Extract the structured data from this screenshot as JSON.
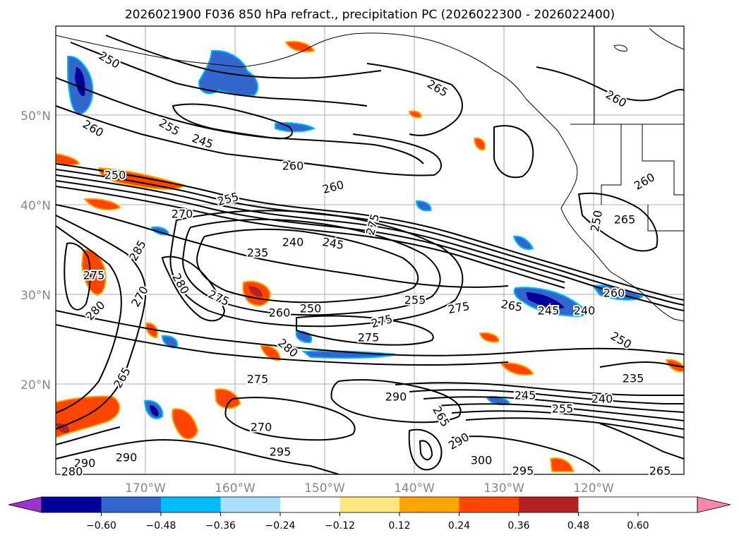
{
  "title": "2026021900 F036 850 hPa refract., precipitation PC (2026022300 - 2026022400)",
  "map": {
    "lat_labels": [
      "50°N",
      "40°N",
      "30°N",
      "20°N"
    ],
    "lon_labels": [
      "170°W",
      "160°W",
      "150°W",
      "140°W",
      "130°W",
      "120°W"
    ],
    "lat_range": [
      10,
      60
    ],
    "lon_range": [
      -180,
      -110
    ]
  },
  "colorbar": {
    "ticks": [
      "−0.60",
      "−0.48",
      "−0.36",
      "−0.24",
      "−0.12",
      "0.12",
      "0.24",
      "0.36",
      "0.48",
      "0.60"
    ],
    "colors": [
      "#9933cc",
      "#000099",
      "#3366cc",
      "#00bbff",
      "#aadfff",
      "#ffffff",
      "#ffe680",
      "#ffa500",
      "#ff4500",
      "#b22222",
      "#ff88aa"
    ],
    "extend": "both"
  },
  "contour_labels": [
    "250",
    "260",
    "255",
    "245",
    "250",
    "260",
    "260",
    "255",
    "270",
    "265",
    "275",
    "235",
    "240",
    "245",
    "285",
    "275",
    "270",
    "280",
    "280",
    "275",
    "260",
    "250",
    "255",
    "275",
    "275",
    "275",
    "280",
    "275",
    "265",
    "245",
    "240",
    "260",
    "250",
    "290",
    "245",
    "255",
    "240",
    "235",
    "270",
    "295",
    "290",
    "280",
    "290",
    "300",
    "295",
    "265",
    "290",
    "265",
    "265",
    "260",
    "265",
    "250",
    "260"
  ]
}
